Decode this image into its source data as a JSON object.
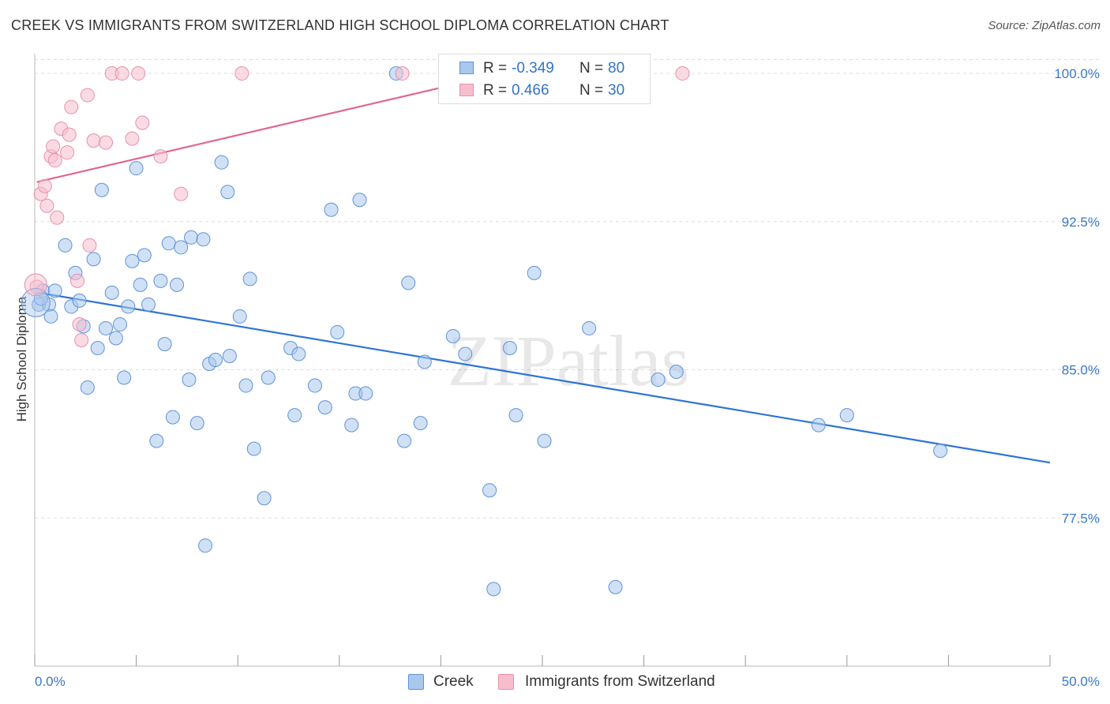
{
  "title": "CREEK VS IMMIGRANTS FROM SWITZERLAND HIGH SCHOOL DIPLOMA CORRELATION CHART",
  "source": "Source: ZipAtlas.com",
  "watermark": "ZIPatlas",
  "colors": {
    "creek_fill": "#a9c8ee",
    "creek_stroke": "#5e93d6",
    "creek_line": "#2f74d4",
    "swiss_fill": "#f6bdcd",
    "swiss_stroke": "#e890ab",
    "swiss_line": "#e0678f",
    "axis_value": "#3a78c9",
    "grid": "#dddddd"
  },
  "legend": {
    "rows": [
      {
        "r_label": "R =",
        "r_value": "-0.349",
        "n_label": "N =",
        "n_value": "80"
      },
      {
        "r_label": "R =",
        "r_value": "0.466",
        "n_label": "N =",
        "n_value": "30"
      }
    ]
  },
  "bottom_legend": [
    "Creek",
    "Immigrants from Switzerland"
  ],
  "chart_data": {
    "type": "scatter",
    "title": "CREEK VS IMMIGRANTS FROM SWITZERLAND HIGH SCHOOL DIPLOMA CORRELATION CHART",
    "xlabel": "",
    "ylabel": "High School Diploma",
    "xlim": [
      0,
      50
    ],
    "ylim": [
      70.0,
      101.0
    ],
    "x_tick_labels": [
      "0.0%",
      "50.0%"
    ],
    "y_ticks": [
      77.5,
      85.0,
      92.5,
      100.0
    ],
    "y_tick_labels": [
      "77.5%",
      "85.0%",
      "92.5%",
      "100.0%"
    ],
    "grid": "horizontal dashed",
    "series": [
      {
        "name": "Creek",
        "regression": [
          [
            0.2,
            88.9
          ],
          [
            50.0,
            80.3
          ]
        ],
        "points": [
          [
            0.2,
            88.3
          ],
          [
            0.4,
            89.0
          ],
          [
            0.7,
            88.3
          ],
          [
            0.8,
            87.7
          ],
          [
            1.0,
            89.0
          ],
          [
            1.5,
            91.3
          ],
          [
            1.8,
            88.2
          ],
          [
            2.0,
            89.9
          ],
          [
            2.2,
            88.5
          ],
          [
            2.4,
            87.2
          ],
          [
            2.6,
            84.1
          ],
          [
            2.9,
            90.6
          ],
          [
            3.1,
            86.1
          ],
          [
            3.3,
            94.1
          ],
          [
            3.5,
            87.1
          ],
          [
            3.8,
            88.9
          ],
          [
            4.0,
            86.6
          ],
          [
            4.2,
            87.3
          ],
          [
            4.4,
            84.6
          ],
          [
            4.6,
            88.2
          ],
          [
            4.8,
            90.5
          ],
          [
            5.0,
            95.2
          ],
          [
            5.2,
            89.3
          ],
          [
            5.4,
            90.8
          ],
          [
            5.6,
            88.3
          ],
          [
            6.0,
            81.4
          ],
          [
            6.2,
            89.5
          ],
          [
            6.4,
            86.3
          ],
          [
            6.6,
            91.4
          ],
          [
            6.8,
            82.6
          ],
          [
            7.0,
            89.3
          ],
          [
            7.2,
            91.2
          ],
          [
            7.6,
            84.5
          ],
          [
            7.7,
            91.7
          ],
          [
            8.0,
            82.3
          ],
          [
            8.3,
            91.6
          ],
          [
            8.4,
            76.1
          ],
          [
            8.6,
            85.3
          ],
          [
            8.9,
            85.5
          ],
          [
            9.2,
            95.5
          ],
          [
            9.5,
            94.0
          ],
          [
            9.6,
            85.7
          ],
          [
            10.1,
            87.7
          ],
          [
            10.4,
            84.2
          ],
          [
            10.6,
            89.6
          ],
          [
            10.8,
            81.0
          ],
          [
            11.3,
            78.5
          ],
          [
            11.5,
            84.6
          ],
          [
            12.6,
            86.1
          ],
          [
            12.8,
            82.7
          ],
          [
            13.0,
            85.8
          ],
          [
            13.8,
            84.2
          ],
          [
            14.3,
            83.1
          ],
          [
            14.6,
            93.1
          ],
          [
            14.9,
            86.9
          ],
          [
            15.6,
            82.2
          ],
          [
            15.8,
            83.8
          ],
          [
            16.0,
            93.6
          ],
          [
            16.3,
            83.8
          ],
          [
            17.8,
            100.0
          ],
          [
            18.2,
            81.4
          ],
          [
            18.4,
            89.4
          ],
          [
            19.0,
            82.3
          ],
          [
            19.2,
            85.4
          ],
          [
            20.6,
            86.7
          ],
          [
            21.2,
            85.8
          ],
          [
            22.4,
            78.9
          ],
          [
            22.6,
            73.9
          ],
          [
            23.4,
            86.1
          ],
          [
            23.7,
            82.7
          ],
          [
            24.6,
            89.9
          ],
          [
            25.1,
            81.4
          ],
          [
            27.3,
            87.1
          ],
          [
            28.6,
            74.0
          ],
          [
            30.7,
            84.5
          ],
          [
            31.6,
            84.9
          ],
          [
            38.6,
            82.2
          ],
          [
            40.0,
            82.7
          ],
          [
            44.6,
            80.9
          ],
          [
            0.3,
            88.6
          ]
        ]
      },
      {
        "name": "Immigrants from Switzerland",
        "regression": [
          [
            0.1,
            94.5
          ],
          [
            23.0,
            100.0
          ]
        ],
        "points": [
          [
            0.1,
            89.2
          ],
          [
            0.3,
            93.9
          ],
          [
            0.5,
            94.3
          ],
          [
            0.6,
            93.3
          ],
          [
            0.8,
            95.8
          ],
          [
            0.9,
            96.3
          ],
          [
            1.0,
            95.6
          ],
          [
            1.1,
            92.7
          ],
          [
            1.3,
            97.2
          ],
          [
            1.6,
            96.0
          ],
          [
            1.7,
            96.9
          ],
          [
            1.8,
            98.3
          ],
          [
            2.1,
            89.5
          ],
          [
            2.2,
            87.3
          ],
          [
            2.3,
            86.5
          ],
          [
            2.6,
            98.9
          ],
          [
            2.7,
            91.3
          ],
          [
            2.9,
            96.6
          ],
          [
            3.5,
            96.5
          ],
          [
            3.8,
            100.0
          ],
          [
            4.3,
            100.0
          ],
          [
            4.8,
            96.7
          ],
          [
            5.1,
            100.0
          ],
          [
            5.3,
            97.5
          ],
          [
            6.2,
            95.8
          ],
          [
            7.2,
            93.9
          ],
          [
            10.2,
            100.0
          ],
          [
            18.1,
            100.0
          ],
          [
            24.6,
            100.0
          ],
          [
            31.9,
            100.0
          ]
        ]
      }
    ]
  }
}
